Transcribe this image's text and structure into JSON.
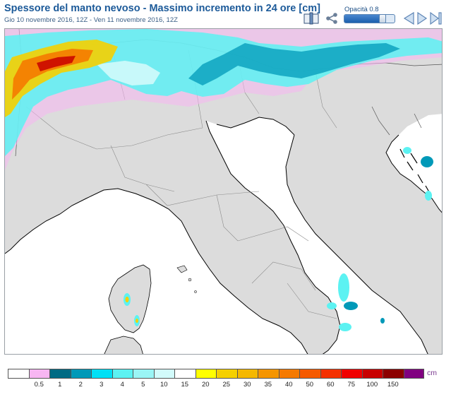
{
  "header": {
    "title": "Spessore del manto nevoso - Massimo incremento in 24 ore [cm]",
    "subtitle": "Gio 10 novembre 2016, 12Z - Ven 11 novembre 2016, 12Z"
  },
  "toolbar": {
    "opacity_label": "Opacità 0.8",
    "opacity_value": 0.8,
    "icons": [
      "book-icon",
      "share-icon",
      "first-frame-icon",
      "previous-frame-icon",
      "next-frame-icon"
    ]
  },
  "legend": {
    "unit": "cm",
    "ticks": [
      "0.5",
      "1",
      "2",
      "3",
      "4",
      "5",
      "10",
      "15",
      "20",
      "25",
      "30",
      "35",
      "40",
      "50",
      "60",
      "75",
      "100",
      "150"
    ],
    "colors": [
      "#ffffff",
      "#f7b6f2",
      "#006b84",
      "#0099b8",
      "#00e0f5",
      "#5cf2f2",
      "#9af5f5",
      "#d2fbfb",
      "#ffffff",
      "#ffff00",
      "#f5d000",
      "#f5b800",
      "#f59500",
      "#f57a00",
      "#f55a00",
      "#f53000",
      "#f00000",
      "#c80000",
      "#8c0000",
      "#800080"
    ]
  },
  "colors": {
    "title": "#1c5a99",
    "land": "#dcdcdc",
    "sea": "#ffffff"
  }
}
